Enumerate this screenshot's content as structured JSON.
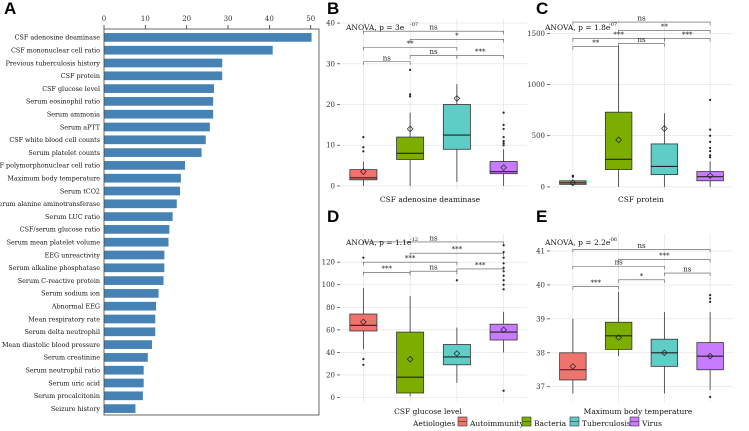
{
  "panel_letters": [
    "A",
    "B",
    "C",
    "D",
    "E"
  ],
  "chart_data": [
    {
      "panel": "A",
      "type": "bar",
      "orientation": "horizontal",
      "color": "#4682b4",
      "xlim": [
        0,
        52
      ],
      "xticks": [
        0,
        10,
        20,
        30,
        40,
        50
      ],
      "categories": [
        "CSF adenosine deaminase",
        "CSF mononuclear cell ratio",
        "Previous tuberculosis history",
        "CSF protein",
        "CSF glucose level",
        "Serum eosinophil ratio",
        "Serum ammonia",
        "Serum aPTT",
        "CSF white blood cell counts",
        "Serum platelet counts",
        "CSF polymorphonuclear cell ratio",
        "Maximum body temperature",
        "Serum tCO2",
        "Serum alanine aminotransferase",
        "Serum LUC ratio",
        "CSF/serum glucose ratio",
        "Serum mean platelet volume",
        "EEG unreactivity",
        "Serum alkaline phosphatase",
        "Serum C-reactive protein",
        "Serum sodium ion",
        "Abnormal EEG",
        "Mean respiratory rate",
        "Serum delta neutrophil",
        "Mean diastolic blood pressure",
        "Serum creatinine",
        "Serum neutrophil ratio",
        "Serum uric acid",
        "Serum procalcitonin",
        "Seizure history"
      ],
      "values": [
        50.2,
        40.8,
        28.6,
        28.6,
        26.6,
        26.4,
        26.4,
        25.6,
        24.6,
        23.6,
        19.6,
        18.6,
        18.4,
        17.6,
        16.6,
        15.8,
        15.6,
        14.6,
        14.6,
        14.4,
        13.2,
        12.6,
        12.4,
        12.4,
        11.6,
        10.6,
        9.6,
        9.6,
        9.4,
        7.6
      ]
    },
    {
      "panel": "B",
      "type": "box",
      "annotation": "ANOVA, p = 3e",
      "annotation_exp": "-07",
      "xlabel": "CSF adenosine deaminase",
      "ylim": [
        -1,
        41
      ],
      "yticks": [
        0,
        10,
        20,
        30,
        40
      ],
      "groups": [
        {
          "q1": 1.5,
          "median": 2,
          "q3": 4,
          "wlo": 0,
          "whi": 6,
          "mean": 3.5,
          "outliers": [
            12,
            9.5,
            8.5
          ]
        },
        {
          "q1": 6.5,
          "median": 8,
          "q3": 12,
          "wlo": 0,
          "whi": 18,
          "mean": 14,
          "outliers": [
            28.5,
            22,
            22.5
          ]
        },
        {
          "q1": 9,
          "median": 12.5,
          "q3": 20,
          "wlo": 1,
          "whi": 25,
          "mean": 21.5,
          "outliers": []
        },
        {
          "q1": 3,
          "median": 3.5,
          "q3": 6,
          "wlo": 0,
          "whi": 9,
          "mean": 4.5,
          "outliers": [
            18,
            15,
            14,
            12,
            11,
            10.5,
            10
          ]
        }
      ],
      "brackets": [
        {
          "from": 0,
          "to": 1,
          "y": 30.5,
          "label": "ns"
        },
        {
          "from": 0,
          "to": 2,
          "y": 34,
          "label": "**"
        },
        {
          "from": 0,
          "to": 3,
          "y": 38,
          "label": "ns"
        },
        {
          "from": 1,
          "to": 2,
          "y": 32,
          "label": "ns"
        },
        {
          "from": 1,
          "to": 3,
          "y": 36,
          "label": "*"
        },
        {
          "from": 2,
          "to": 3,
          "y": 32,
          "label": "***"
        }
      ]
    },
    {
      "panel": "C",
      "type": "box",
      "annotation": "ANOVA, p = 1.8e",
      "annotation_exp": "-07",
      "xlabel": "CSF protein",
      "ylim": [
        -30,
        1640
      ],
      "yticks": [
        0,
        500,
        1000,
        1500
      ],
      "groups": [
        {
          "q1": 25,
          "median": 40,
          "q3": 60,
          "wlo": 10,
          "whi": 75,
          "mean": 40,
          "outliers": [
            110,
            100
          ]
        },
        {
          "q1": 170,
          "median": 270,
          "q3": 730,
          "wlo": 0,
          "whi": 1380,
          "mean": 460,
          "outliers": []
        },
        {
          "q1": 120,
          "median": 200,
          "q3": 420,
          "wlo": 0,
          "whi": 720,
          "mean": 570,
          "outliers": []
        },
        {
          "q1": 60,
          "median": 100,
          "q3": 150,
          "wlo": 0,
          "whi": 250,
          "mean": 110,
          "outliers": [
            850,
            560,
            500,
            440,
            380,
            350,
            310,
            290
          ]
        }
      ],
      "brackets": [
        {
          "from": 0,
          "to": 1,
          "y": 1370,
          "label": "**"
        },
        {
          "from": 0,
          "to": 2,
          "y": 1450,
          "label": "***"
        },
        {
          "from": 0,
          "to": 3,
          "y": 1610,
          "label": "ns"
        },
        {
          "from": 1,
          "to": 2,
          "y": 1400,
          "label": "ns"
        },
        {
          "from": 1,
          "to": 3,
          "y": 1530,
          "label": "**"
        },
        {
          "from": 2,
          "to": 3,
          "y": 1450,
          "label": "***"
        }
      ]
    },
    {
      "panel": "D",
      "type": "box",
      "annotation": "ANOVA, p = 1.1e",
      "annotation_exp": "-12",
      "xlabel": "CSF glucose level",
      "ylim": [
        -4,
        145
      ],
      "yticks": [
        0,
        20,
        40,
        60,
        80,
        100,
        120
      ],
      "groups": [
        {
          "q1": 59,
          "median": 64,
          "q3": 74,
          "wlo": 43,
          "whi": 97,
          "mean": 67,
          "outliers": [
            124,
            34,
            29
          ]
        },
        {
          "q1": 4,
          "median": 18,
          "q3": 58,
          "wlo": 1,
          "whi": 90,
          "mean": 34,
          "outliers": []
        },
        {
          "q1": 29,
          "median": 36,
          "q3": 47,
          "wlo": 13,
          "whi": 62,
          "mean": 39,
          "outliers": [
            104
          ]
        },
        {
          "q1": 51,
          "median": 58,
          "q3": 65,
          "wlo": 40,
          "whi": 76,
          "mean": 60,
          "outliers": [
            135,
            129,
            124,
            119,
            115,
            112,
            108,
            104,
            100,
            96,
            6
          ]
        }
      ],
      "brackets": [
        {
          "from": 0,
          "to": 1,
          "y": 111,
          "label": "***"
        },
        {
          "from": 0,
          "to": 2,
          "y": 120,
          "label": "***"
        },
        {
          "from": 0,
          "to": 3,
          "y": 138,
          "label": "ns"
        },
        {
          "from": 1,
          "to": 2,
          "y": 112,
          "label": "ns"
        },
        {
          "from": 1,
          "to": 3,
          "y": 128,
          "label": "***"
        },
        {
          "from": 2,
          "to": 3,
          "y": 114,
          "label": "***"
        }
      ]
    },
    {
      "panel": "E",
      "type": "box",
      "annotation": "ANOVA, p = 2.2e",
      "annotation_exp": "-06",
      "xlabel": "Maximum body temperature",
      "ylim": [
        36.55,
        41.5
      ],
      "yticks": [
        37,
        38,
        39,
        40,
        41
      ],
      "groups": [
        {
          "q1": 37.2,
          "median": 37.5,
          "q3": 38,
          "wlo": 36.8,
          "whi": 39,
          "mean": 37.6,
          "outliers": []
        },
        {
          "q1": 38.1,
          "median": 38.5,
          "q3": 38.9,
          "wlo": 37.9,
          "whi": 39.8,
          "mean": 38.45,
          "outliers": []
        },
        {
          "q1": 37.6,
          "median": 38,
          "q3": 38.4,
          "wlo": 36.8,
          "whi": 39.2,
          "mean": 38,
          "outliers": []
        },
        {
          "q1": 37.5,
          "median": 37.9,
          "q3": 38.3,
          "wlo": 36.9,
          "whi": 39.2,
          "mean": 37.9,
          "outliers": [
            39.7,
            39.6,
            39.5,
            36.7
          ]
        }
      ],
      "brackets": [
        {
          "from": 0,
          "to": 1,
          "y": 39.95,
          "label": "***"
        },
        {
          "from": 0,
          "to": 2,
          "y": 40.55,
          "label": "ns"
        },
        {
          "from": 0,
          "to": 3,
          "y": 41.05,
          "label": "ns"
        },
        {
          "from": 1,
          "to": 2,
          "y": 40.15,
          "label": "*"
        },
        {
          "from": 1,
          "to": 3,
          "y": 40.75,
          "label": "***"
        },
        {
          "from": 2,
          "to": 3,
          "y": 40.35,
          "label": "ns"
        }
      ]
    }
  ],
  "legend": {
    "title": "Aetiologies",
    "items": [
      {
        "label": "Autoimmunity",
        "color": "#f0746e"
      },
      {
        "label": "Bacteria",
        "color": "#7cae00"
      },
      {
        "label": "Tuberculosis",
        "color": "#5ecdc5"
      },
      {
        "label": "Virus",
        "color": "#c77cff"
      }
    ]
  },
  "colors": {
    "bar": "#4682b4",
    "grid": "#e0e0e0",
    "axis": "#333333"
  }
}
